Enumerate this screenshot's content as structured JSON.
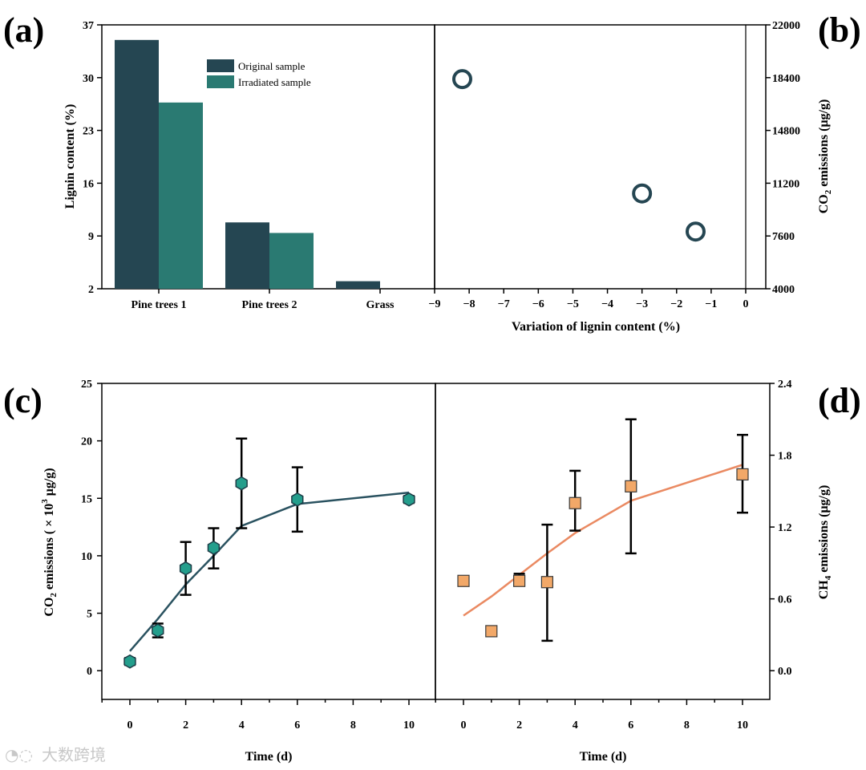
{
  "panel_labels": {
    "a": "(a)",
    "b": "(b)",
    "c": "(c)",
    "d": "(d)"
  },
  "watermark": "大数跨境",
  "colors": {
    "original": "#254652",
    "irradiated": "#2a7a72",
    "co2_line": "#2a5260",
    "co2_marker": "#249e8c",
    "ch4_line": "#ea8a62",
    "ch4_marker": "#f2a868",
    "scatter": "#254652"
  },
  "chart_data": [
    {
      "id": "a",
      "type": "bar",
      "categories": [
        "Pine trees 1",
        "Pine trees 2",
        "Grass"
      ],
      "series": [
        {
          "name": "Original sample",
          "values": [
            35.0,
            10.8,
            3.0
          ]
        },
        {
          "name": "Irradiated sample",
          "values": [
            26.7,
            9.4,
            2.0
          ]
        }
      ],
      "ylabel": "Lignin content (%)",
      "xlabel": "",
      "ylim": [
        2,
        37
      ],
      "yticks": [
        "2",
        "9",
        "16",
        "23",
        "30",
        "37"
      ],
      "legend": "top-right",
      "grid": false
    },
    {
      "id": "b",
      "type": "scatter",
      "x": [
        -8.2,
        -3.0,
        -1.45
      ],
      "y": [
        18300,
        10500,
        7900
      ],
      "xlabel": "Variation of lignin content (%)",
      "ylabel": "CO2 emissions (μg/g)",
      "xlim": [
        -9,
        0
      ],
      "ylim": [
        4000,
        22000
      ],
      "xticks": [
        "−9",
        "−8",
        "−7",
        "−6",
        "−5",
        "−4",
        "−3",
        "−2",
        "−1",
        "0"
      ],
      "yticks": [
        "4000",
        "7600",
        "11200",
        "14800",
        "18400",
        "22000"
      ],
      "grid": false
    },
    {
      "id": "c",
      "type": "scatter",
      "x": [
        0,
        1,
        2,
        3,
        4,
        6,
        10
      ],
      "y": [
        0.8,
        3.5,
        8.9,
        10.7,
        16.3,
        14.9,
        14.9
      ],
      "error_low": [
        0.5,
        2.9,
        6.6,
        8.9,
        12.4,
        12.1,
        14.6
      ],
      "error_high": [
        1.1,
        4.1,
        11.2,
        12.4,
        20.2,
        17.7,
        15.2
      ],
      "fit_x": [
        0,
        1,
        2,
        3,
        4,
        6,
        10
      ],
      "fit_y": [
        1.7,
        4.5,
        7.5,
        10.0,
        12.6,
        14.5,
        15.5
      ],
      "xlabel": "Time (d)",
      "ylabel": "CO2 emissions ( × 10^3 μg/g)",
      "xlim": [
        -1,
        11
      ],
      "ylim": [
        -2.5,
        25
      ],
      "xticks": [
        "0",
        "2",
        "4",
        "6",
        "8",
        "10"
      ],
      "yticks": [
        "0",
        "5",
        "10",
        "15",
        "20",
        "25"
      ],
      "grid": false
    },
    {
      "id": "d",
      "type": "scatter",
      "x": [
        0,
        1,
        2,
        3,
        4,
        6,
        10
      ],
      "y": [
        0.75,
        0.33,
        0.75,
        0.74,
        1.4,
        1.54,
        1.64
      ],
      "error_low": [
        0.72,
        0.31,
        0.72,
        0.25,
        1.17,
        0.98,
        1.32
      ],
      "error_high": [
        0.79,
        0.37,
        0.81,
        1.22,
        1.67,
        2.1,
        1.97
      ],
      "fit_x": [
        0,
        1,
        2,
        3,
        4,
        6,
        10
      ],
      "fit_y": [
        0.46,
        0.62,
        0.8,
        0.98,
        1.15,
        1.42,
        1.72
      ],
      "xlabel": "Time (d)",
      "ylabel": "CH4 emissions (μg/g)",
      "xlim": [
        -1,
        11
      ],
      "ylim": [
        -0.24,
        2.4
      ],
      "xticks": [
        "0",
        "2",
        "4",
        "6",
        "8",
        "10"
      ],
      "yticks": [
        "0.0",
        "0.6",
        "1.2",
        "1.8",
        "2.4"
      ],
      "grid": false
    }
  ]
}
